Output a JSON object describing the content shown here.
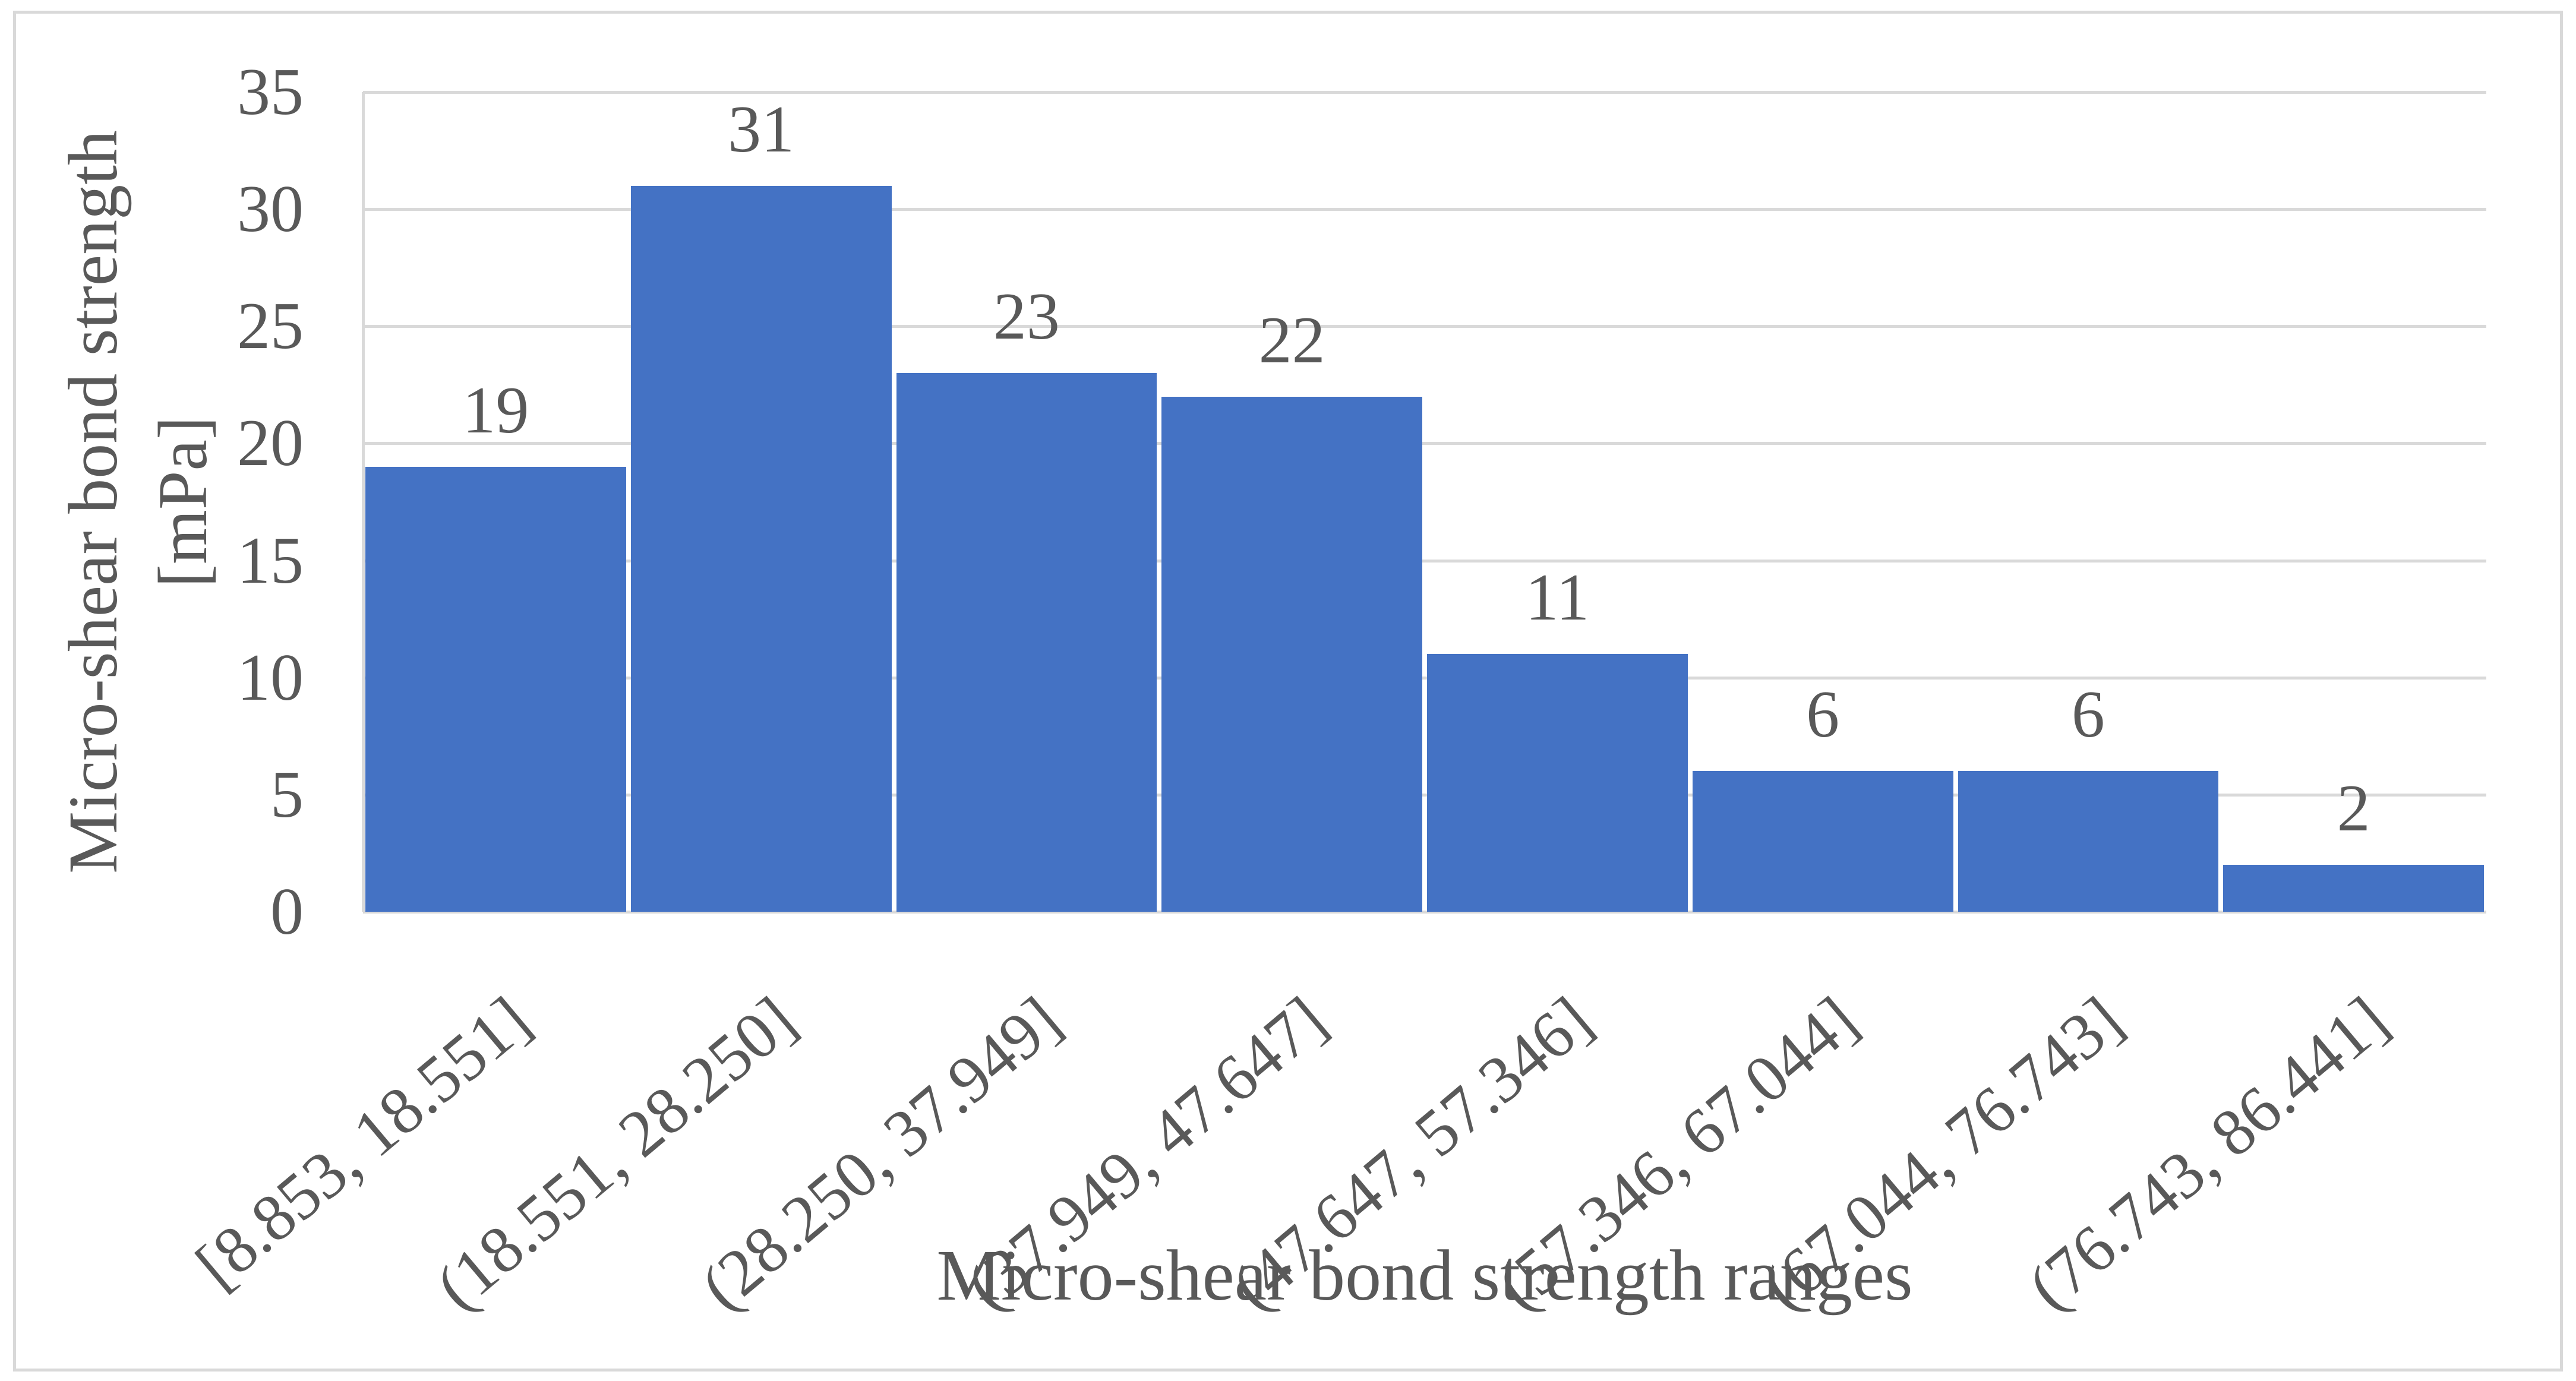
{
  "figure": {
    "background": "#ffffff",
    "border_color": "#d9d9d9"
  },
  "chart_data": {
    "type": "bar",
    "title": "",
    "categories": [
      "[8.853, 18.551]",
      "(18.551, 28.250]",
      "(28.250, 37.949]",
      "(37.949, 47.647]",
      "(47.647, 57.346]",
      "(57.346, 67.044]",
      "(67.044, 76.743]",
      "(76.743, 86.441]"
    ],
    "values": [
      19,
      31,
      23,
      22,
      11,
      6,
      6,
      2
    ],
    "data_labels": [
      "19",
      "31",
      "23",
      "22",
      "11",
      "6",
      "6",
      "2"
    ],
    "xlabel": "Micro-shear bond strength ranges",
    "ylabel": "Micro-shear bond strength [mPa]",
    "ylabel_line1": "Micro-shear bond strength",
    "ylabel_line2": "[mPa]",
    "ylim": [
      0,
      35
    ],
    "yticks": [
      0,
      5,
      10,
      15,
      20,
      25,
      30,
      35
    ],
    "grid": "horizontal",
    "legend": "none",
    "bar_gap_ratio": 0.02,
    "label_rotation_deg": -40,
    "colors": {
      "bar": "#4472c4",
      "grid": "#d9d9d9",
      "axis": "#d9d9d9",
      "text": "#595959"
    }
  }
}
